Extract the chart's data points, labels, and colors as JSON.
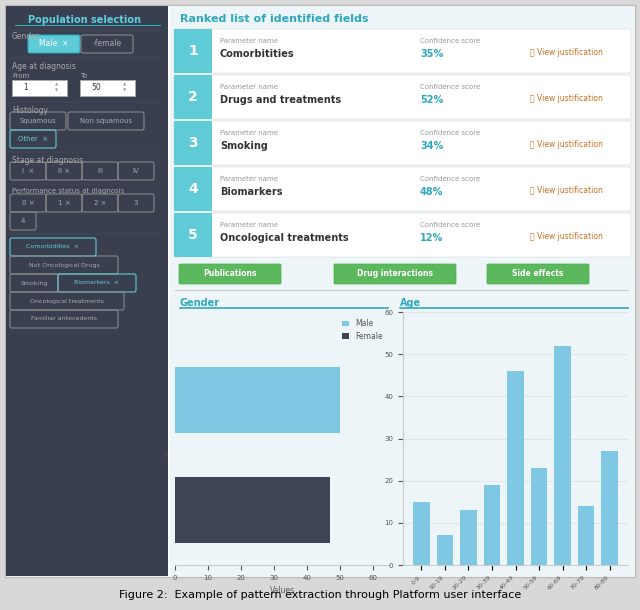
{
  "title": "Figure 2:  Example of pattern extraction through Platform user interface",
  "left_bg": "#3a3f50",
  "left_title": "Population selection",
  "left_title_color": "#5ecfe0",
  "right_bg": "#edf5f8",
  "white": "#ffffff",
  "outer_bg": "#d8d8d8",
  "teal": "#5ecbd6",
  "teal_dark": "#2fa8bc",
  "gray_text": "#aaaaaa",
  "dark_text": "#333333",
  "green_btn": "#5cb85c",
  "ranked_items": [
    {
      "rank": "1",
      "param": "Comorbitities",
      "confidence": "35%"
    },
    {
      "rank": "2",
      "param": "Drugs and treatments",
      "confidence": "52%"
    },
    {
      "rank": "3",
      "param": "Smoking",
      "confidence": "34%"
    },
    {
      "rank": "4",
      "param": "Biomarkers",
      "confidence": "48%"
    },
    {
      "rank": "5",
      "param": "Oncological treatments",
      "confidence": "12%"
    }
  ],
  "gender_male": 50,
  "gender_female": 47,
  "gender_male_color": "#7ec8e3",
  "gender_female_color": "#3d4554",
  "age_categories": [
    "0-9",
    "10-19",
    "20-29",
    "30-39",
    "40-49",
    "50-59",
    "60-69",
    "70-79",
    "80-89"
  ],
  "age_values": [
    15,
    7,
    13,
    19,
    46,
    23,
    52,
    14,
    27
  ],
  "age_bar_color": "#7ec8e3",
  "chart_area_bg": "#edf5f8",
  "separator_color": "#cccccc",
  "divider_teal": "#2fa8bc"
}
